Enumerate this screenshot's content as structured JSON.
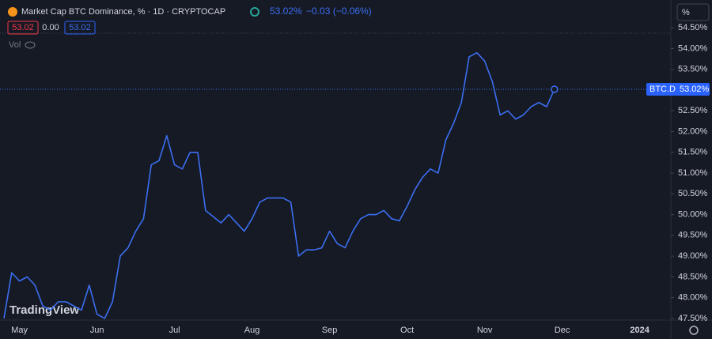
{
  "header": {
    "title": "Market Cap BTC Dominance, % · 1D · CRYPTOCAP",
    "price": "53.02%",
    "change": "−0.03 (−0.06%)",
    "bid": "53.02",
    "spread": "0.00",
    "ask": "53.02",
    "vol": "Vol"
  },
  "scale_button": "%",
  "logo": "TradingView",
  "chart_data": {
    "type": "line",
    "categories": [
      null,
      null,
      "May",
      null,
      null,
      null,
      null,
      null,
      null,
      null,
      null,
      null,
      "Jun",
      null,
      null,
      null,
      null,
      null,
      null,
      null,
      null,
      null,
      "Jul",
      null,
      null,
      null,
      null,
      null,
      null,
      null,
      null,
      null,
      "Aug",
      null,
      null,
      null,
      null,
      null,
      null,
      null,
      null,
      null,
      "Sep",
      null,
      null,
      null,
      null,
      null,
      null,
      null,
      null,
      null,
      "Oct",
      null,
      null,
      null,
      null,
      null,
      null,
      null,
      null,
      null,
      "Nov",
      null,
      null,
      null,
      null,
      null,
      null,
      null,
      null,
      null,
      "Dec",
      null,
      null,
      null,
      null,
      null,
      null,
      null,
      null,
      null,
      "2024",
      null,
      null,
      null
    ],
    "series": [
      {
        "name": "BTC.D",
        "color": "#3b6ef0",
        "values": [
          47.5,
          48.6,
          48.4,
          48.5,
          48.3,
          47.8,
          47.7,
          47.9,
          47.9,
          47.8,
          47.7,
          48.3,
          47.6,
          47.5,
          47.9,
          49.0,
          49.2,
          49.6,
          49.9,
          51.2,
          51.3,
          51.9,
          51.2,
          51.1,
          51.5,
          51.5,
          50.1,
          49.95,
          49.8,
          50.0,
          49.8,
          49.6,
          49.9,
          50.3,
          50.4,
          50.4,
          50.4,
          50.3,
          49.0,
          49.15,
          49.15,
          49.2,
          49.6,
          49.3,
          49.2,
          49.6,
          49.9,
          50.0,
          50.0,
          50.1,
          49.9,
          49.85,
          50.2,
          50.6,
          50.9,
          51.1,
          51.0,
          51.8,
          52.2,
          52.7,
          53.8,
          53.9,
          53.7,
          53.2,
          52.4,
          52.5,
          52.3,
          52.4,
          52.6,
          52.7,
          52.6,
          53.02,
          null,
          null,
          null,
          null,
          null,
          null,
          null,
          null,
          null,
          null,
          null,
          null,
          null,
          null
        ]
      }
    ],
    "price_tag": {
      "symbol": "BTC.D",
      "label": "53.02%"
    },
    "ylim": [
      47.46,
      55.17
    ],
    "yticks": [
      {
        "value": 47.5,
        "label": "47.50%"
      },
      {
        "value": 48.0,
        "label": "48.00%"
      },
      {
        "value": 48.5,
        "label": "48.50%"
      },
      {
        "value": 49.0,
        "label": "49.00%"
      },
      {
        "value": 49.5,
        "label": "49.50%"
      },
      {
        "value": 50.0,
        "label": "50.00%"
      },
      {
        "value": 50.5,
        "label": "50.50%"
      },
      {
        "value": 51.0,
        "label": "51.00%"
      },
      {
        "value": 51.5,
        "label": "51.50%"
      },
      {
        "value": 52.0,
        "label": "52.00%"
      },
      {
        "value": 52.5,
        "label": "52.50%"
      },
      {
        "value": 53.0,
        "label": "53.00%"
      },
      {
        "value": 53.5,
        "label": "53.50%"
      },
      {
        "value": 54.0,
        "label": "54.00%"
      },
      {
        "value": 54.5,
        "label": "54.50%"
      }
    ],
    "grid": false
  }
}
